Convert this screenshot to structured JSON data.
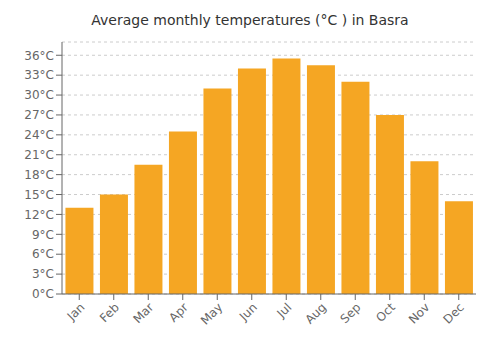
{
  "chart_data": {
    "type": "bar",
    "title": "Average monthly temperatures (°C ) in Basra",
    "categories": [
      "Jan",
      "Feb",
      "Mar",
      "Apr",
      "May",
      "Jun",
      "Jul",
      "Aug",
      "Sep",
      "Oct",
      "Nov",
      "Dec"
    ],
    "values": [
      13,
      15,
      19.5,
      24.5,
      31,
      34,
      35.5,
      34.5,
      32,
      27,
      20,
      14
    ],
    "color": "#F5A623",
    "ylim": [
      0,
      38
    ],
    "yticks": [
      {
        "value": 0,
        "label": "0°C"
      },
      {
        "value": 3,
        "label": "3°C"
      },
      {
        "value": 6,
        "label": "6°C"
      },
      {
        "value": 9,
        "label": "9°C"
      },
      {
        "value": 12,
        "label": "12°C"
      },
      {
        "value": 15,
        "label": "15°C"
      },
      {
        "value": 18,
        "label": "18°C"
      },
      {
        "value": 21,
        "label": "21°C"
      },
      {
        "value": 24,
        "label": "24°C"
      },
      {
        "value": 27,
        "label": "27°C"
      },
      {
        "value": 30,
        "label": "30°C"
      },
      {
        "value": 33,
        "label": "33°C"
      },
      {
        "value": 36,
        "label": "36°C"
      }
    ],
    "grid": true
  }
}
